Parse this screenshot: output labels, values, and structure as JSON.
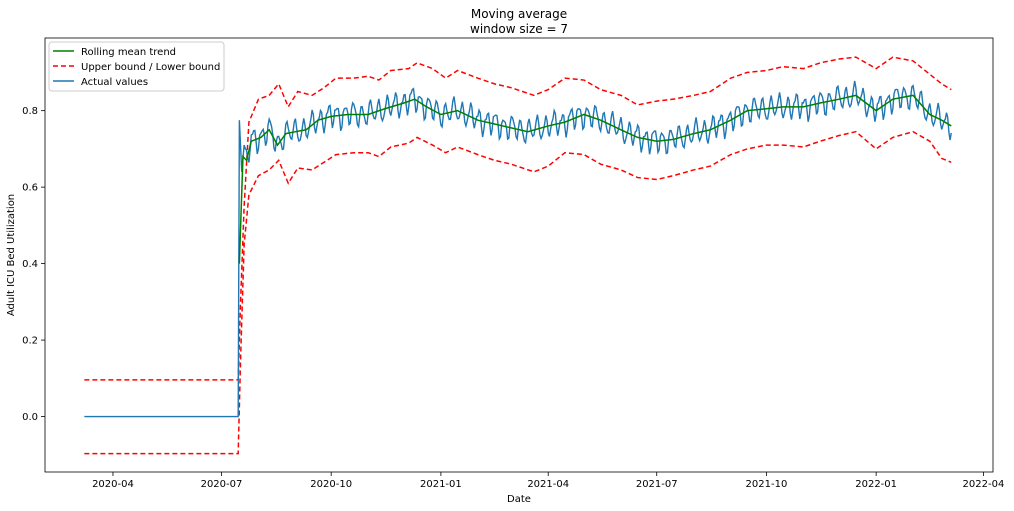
{
  "chart_data": {
    "type": "line",
    "title": "Moving average",
    "subtitle": "window size = 7",
    "xlabel": "Date",
    "ylabel": "Adult ICU Bed Utilization",
    "xlim": [
      "2020-02-04",
      "2022-04-09"
    ],
    "ylim": [
      -0.145,
      0.99
    ],
    "x_ticks": [
      {
        "date": "2020-04-01",
        "label": "2020-04"
      },
      {
        "date": "2020-07-01",
        "label": "2020-07"
      },
      {
        "date": "2020-10-01",
        "label": "2020-10"
      },
      {
        "date": "2021-01-01",
        "label": "2021-01"
      },
      {
        "date": "2021-04-01",
        "label": "2021-04"
      },
      {
        "date": "2021-07-01",
        "label": "2021-07"
      },
      {
        "date": "2021-10-01",
        "label": "2021-10"
      },
      {
        "date": "2022-01-01",
        "label": "2022-01"
      },
      {
        "date": "2022-04-01",
        "label": "2022-04"
      }
    ],
    "y_ticks": [
      {
        "value": 0.0,
        "label": "0.0"
      },
      {
        "value": 0.2,
        "label": "0.2"
      },
      {
        "value": 0.4,
        "label": "0.4"
      },
      {
        "value": 0.6,
        "label": "0.6"
      },
      {
        "value": 0.8,
        "label": "0.8"
      }
    ],
    "legend": {
      "position": "upper-left",
      "entries": [
        "Rolling mean trend",
        "Upper bound / Lower bound",
        "Actual values"
      ]
    },
    "grid": false,
    "series": [
      {
        "name": "Rolling mean trend",
        "color": "#008000",
        "style": "solid",
        "points": [
          [
            "2020-07-16",
            0.4
          ],
          [
            "2020-07-19",
            0.68
          ],
          [
            "2020-07-22",
            0.67
          ],
          [
            "2020-07-26",
            0.72
          ],
          [
            "2020-08-03",
            0.73
          ],
          [
            "2020-08-10",
            0.75
          ],
          [
            "2020-08-17",
            0.71
          ],
          [
            "2020-08-24",
            0.74
          ],
          [
            "2020-09-01",
            0.745
          ],
          [
            "2020-09-10",
            0.75
          ],
          [
            "2020-09-20",
            0.775
          ],
          [
            "2020-10-01",
            0.785
          ],
          [
            "2020-10-15",
            0.79
          ],
          [
            "2020-11-01",
            0.79
          ],
          [
            "2020-11-15",
            0.805
          ],
          [
            "2020-12-01",
            0.82
          ],
          [
            "2020-12-10",
            0.83
          ],
          [
            "2020-12-20",
            0.81
          ],
          [
            "2021-01-01",
            0.79
          ],
          [
            "2021-01-15",
            0.8
          ],
          [
            "2021-02-01",
            0.775
          ],
          [
            "2021-02-15",
            0.765
          ],
          [
            "2021-03-01",
            0.755
          ],
          [
            "2021-03-15",
            0.745
          ],
          [
            "2021-04-01",
            0.76
          ],
          [
            "2021-04-15",
            0.77
          ],
          [
            "2021-05-01",
            0.79
          ],
          [
            "2021-05-15",
            0.775
          ],
          [
            "2021-06-01",
            0.75
          ],
          [
            "2021-06-15",
            0.73
          ],
          [
            "2021-07-01",
            0.72
          ],
          [
            "2021-07-15",
            0.725
          ],
          [
            "2021-08-01",
            0.74
          ],
          [
            "2021-08-15",
            0.75
          ],
          [
            "2021-09-01",
            0.775
          ],
          [
            "2021-09-15",
            0.8
          ],
          [
            "2021-10-01",
            0.805
          ],
          [
            "2021-10-15",
            0.81
          ],
          [
            "2021-11-01",
            0.81
          ],
          [
            "2021-11-15",
            0.82
          ],
          [
            "2021-12-01",
            0.83
          ],
          [
            "2021-12-15",
            0.84
          ],
          [
            "2022-01-01",
            0.8
          ],
          [
            "2022-01-15",
            0.83
          ],
          [
            "2022-02-01",
            0.84
          ],
          [
            "2022-02-15",
            0.79
          ],
          [
            "2022-02-25",
            0.775
          ],
          [
            "2022-03-05",
            0.76
          ]
        ]
      },
      {
        "name": "Upper bound / Lower bound",
        "color": "#ff0000",
        "style": "dashed",
        "upper": [
          [
            "2020-03-08",
            0.096
          ],
          [
            "2020-07-15",
            0.096
          ],
          [
            "2020-07-17",
            0.3
          ],
          [
            "2020-07-20",
            0.55
          ],
          [
            "2020-07-24",
            0.77
          ],
          [
            "2020-08-01",
            0.83
          ],
          [
            "2020-08-10",
            0.84
          ],
          [
            "2020-08-18",
            0.87
          ],
          [
            "2020-08-26",
            0.81
          ],
          [
            "2020-09-03",
            0.85
          ],
          [
            "2020-09-15",
            0.84
          ],
          [
            "2020-09-25",
            0.86
          ],
          [
            "2020-10-05",
            0.885
          ],
          [
            "2020-10-20",
            0.885
          ],
          [
            "2020-11-01",
            0.89
          ],
          [
            "2020-11-10",
            0.88
          ],
          [
            "2020-11-20",
            0.905
          ],
          [
            "2020-12-05",
            0.91
          ],
          [
            "2020-12-12",
            0.925
          ],
          [
            "2020-12-25",
            0.91
          ],
          [
            "2021-01-05",
            0.885
          ],
          [
            "2021-01-15",
            0.905
          ],
          [
            "2021-02-01",
            0.885
          ],
          [
            "2021-02-15",
            0.87
          ],
          [
            "2021-03-01",
            0.86
          ],
          [
            "2021-03-20",
            0.84
          ],
          [
            "2021-04-01",
            0.855
          ],
          [
            "2021-04-15",
            0.885
          ],
          [
            "2021-05-01",
            0.88
          ],
          [
            "2021-05-15",
            0.855
          ],
          [
            "2021-06-01",
            0.84
          ],
          [
            "2021-06-15",
            0.815
          ],
          [
            "2021-07-01",
            0.825
          ],
          [
            "2021-07-15",
            0.83
          ],
          [
            "2021-08-01",
            0.84
          ],
          [
            "2021-08-15",
            0.85
          ],
          [
            "2021-09-01",
            0.885
          ],
          [
            "2021-09-15",
            0.9
          ],
          [
            "2021-10-01",
            0.905
          ],
          [
            "2021-10-15",
            0.915
          ],
          [
            "2021-11-01",
            0.91
          ],
          [
            "2021-11-15",
            0.925
          ],
          [
            "2021-12-01",
            0.935
          ],
          [
            "2021-12-15",
            0.94
          ],
          [
            "2022-01-01",
            0.91
          ],
          [
            "2022-01-15",
            0.94
          ],
          [
            "2022-02-01",
            0.93
          ],
          [
            "2022-02-15",
            0.895
          ],
          [
            "2022-02-25",
            0.87
          ],
          [
            "2022-03-05",
            0.855
          ]
        ],
        "lower": [
          [
            "2020-03-08",
            -0.097
          ],
          [
            "2020-07-15",
            -0.097
          ],
          [
            "2020-07-17",
            0.15
          ],
          [
            "2020-07-20",
            0.45
          ],
          [
            "2020-07-24",
            0.58
          ],
          [
            "2020-08-01",
            0.63
          ],
          [
            "2020-08-10",
            0.645
          ],
          [
            "2020-08-18",
            0.67
          ],
          [
            "2020-08-26",
            0.61
          ],
          [
            "2020-09-03",
            0.65
          ],
          [
            "2020-09-15",
            0.645
          ],
          [
            "2020-09-25",
            0.665
          ],
          [
            "2020-10-05",
            0.685
          ],
          [
            "2020-10-20",
            0.69
          ],
          [
            "2020-11-01",
            0.69
          ],
          [
            "2020-11-10",
            0.68
          ],
          [
            "2020-11-20",
            0.705
          ],
          [
            "2020-12-05",
            0.715
          ],
          [
            "2020-12-12",
            0.73
          ],
          [
            "2020-12-25",
            0.71
          ],
          [
            "2021-01-05",
            0.69
          ],
          [
            "2021-01-15",
            0.705
          ],
          [
            "2021-02-01",
            0.685
          ],
          [
            "2021-02-15",
            0.67
          ],
          [
            "2021-03-01",
            0.66
          ],
          [
            "2021-03-20",
            0.64
          ],
          [
            "2021-04-01",
            0.655
          ],
          [
            "2021-04-15",
            0.69
          ],
          [
            "2021-05-01",
            0.685
          ],
          [
            "2021-05-15",
            0.66
          ],
          [
            "2021-06-01",
            0.645
          ],
          [
            "2021-06-15",
            0.625
          ],
          [
            "2021-07-01",
            0.62
          ],
          [
            "2021-07-15",
            0.63
          ],
          [
            "2021-08-01",
            0.645
          ],
          [
            "2021-08-15",
            0.655
          ],
          [
            "2021-09-01",
            0.685
          ],
          [
            "2021-09-15",
            0.7
          ],
          [
            "2021-10-01",
            0.71
          ],
          [
            "2021-10-15",
            0.71
          ],
          [
            "2021-11-01",
            0.705
          ],
          [
            "2021-11-15",
            0.72
          ],
          [
            "2021-12-01",
            0.735
          ],
          [
            "2021-12-15",
            0.745
          ],
          [
            "2022-01-01",
            0.7
          ],
          [
            "2022-01-15",
            0.73
          ],
          [
            "2022-02-01",
            0.745
          ],
          [
            "2022-02-15",
            0.72
          ],
          [
            "2022-02-25",
            0.675
          ],
          [
            "2022-03-05",
            0.665
          ]
        ]
      },
      {
        "name": "Actual values",
        "color": "#1f77b4",
        "style": "solid",
        "start_date": "2020-03-08",
        "end_date": "2022-03-05",
        "zero_until": "2020-07-15",
        "weekly_amplitude": 0.03,
        "jump": [
          [
            "2020-07-15",
            0.0
          ],
          [
            "2020-07-16",
            0.775
          ],
          [
            "2020-07-18",
            0.64
          ],
          [
            "2020-07-20",
            0.71
          ]
        ]
      }
    ]
  }
}
